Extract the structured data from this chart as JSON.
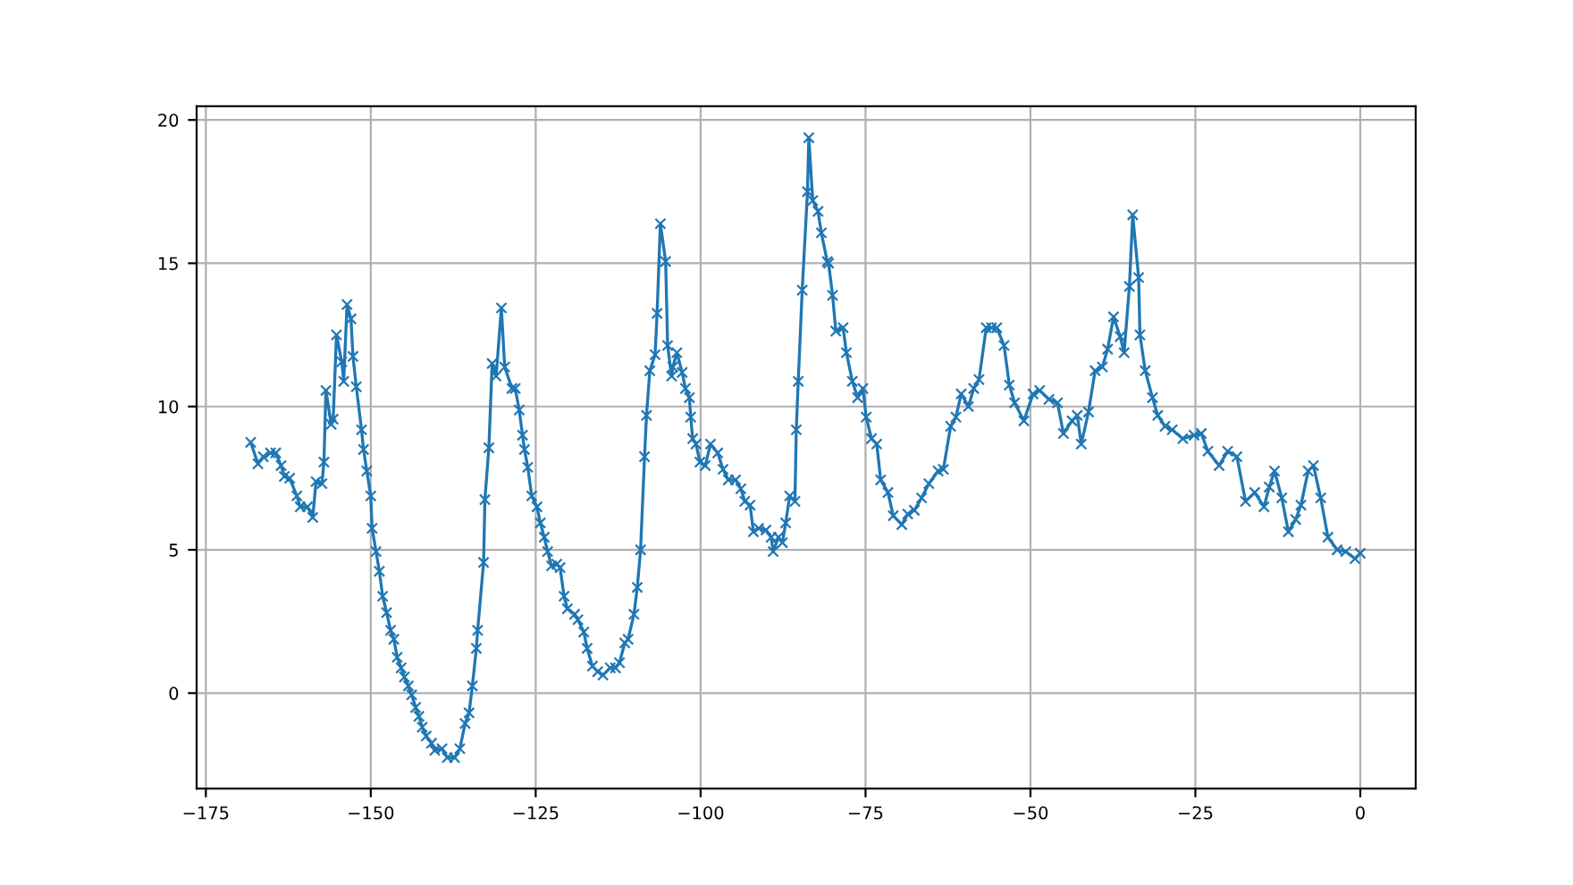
{
  "chart_data": {
    "type": "line",
    "marker": "cross",
    "line_style": "solid",
    "grid": true,
    "xlim": [
      -176.4,
      8.4
    ],
    "ylim": [
      -3.33,
      20.48
    ],
    "xticks": [
      {
        "value": -175,
        "label": "−175"
      },
      {
        "value": -150,
        "label": "−150"
      },
      {
        "value": -125,
        "label": "−125"
      },
      {
        "value": -100,
        "label": "−100"
      },
      {
        "value": -75,
        "label": "−75"
      },
      {
        "value": -50,
        "label": "−50"
      },
      {
        "value": -25,
        "label": "−25"
      },
      0
    ],
    "yticks": [
      0,
      5,
      10,
      15,
      20
    ],
    "series": [
      {
        "color": "#1f77b4",
        "x": [
          -168.2,
          -167.1,
          -166.3,
          -165.2,
          -164.4,
          -163.6,
          -163.1,
          -162.3,
          -161.2,
          -160.7,
          -159.6,
          -158.8,
          -158.3,
          -157.4,
          -157.1,
          -156.8,
          -156.0,
          -155.7,
          -155.2,
          -154.4,
          -154.1,
          -153.6,
          -153.0,
          -152.7,
          -152.2,
          -151.4,
          -151.1,
          -150.6,
          -150.0,
          -149.8,
          -149.2,
          -148.7,
          -148.2,
          -147.6,
          -147.0,
          -146.5,
          -146.0,
          -145.4,
          -144.9,
          -144.3,
          -143.8,
          -143.2,
          -142.7,
          -142.2,
          -141.6,
          -140.8,
          -140.3,
          -139.2,
          -138.4,
          -137.3,
          -136.5,
          -135.7,
          -135.1,
          -134.6,
          -134.0,
          -133.8,
          -132.9,
          -132.7,
          -132.1,
          -131.6,
          -131.0,
          -130.2,
          -129.7,
          -128.6,
          -128.1,
          -127.5,
          -127.0,
          -126.7,
          -126.2,
          -125.6,
          -124.8,
          -124.3,
          -123.7,
          -123.2,
          -122.6,
          -121.8,
          -121.3,
          -120.7,
          -120.2,
          -119.1,
          -118.6,
          -117.7,
          -117.2,
          -116.4,
          -115.6,
          -114.8,
          -113.7,
          -112.9,
          -112.3,
          -111.5,
          -111.0,
          -110.1,
          -109.6,
          -109.1,
          -108.5,
          -108.2,
          -107.7,
          -106.9,
          -106.6,
          -106.1,
          -105.3,
          -105.0,
          -104.4,
          -104.2,
          -103.6,
          -102.8,
          -102.3,
          -101.7,
          -101.5,
          -101.2,
          -100.7,
          -100.1,
          -99.3,
          -98.5,
          -97.4,
          -96.6,
          -95.8,
          -94.7,
          -93.9,
          -93.3,
          -92.5,
          -92.0,
          -91.2,
          -90.1,
          -89.3,
          -89.0,
          -88.2,
          -87.6,
          -87.1,
          -86.5,
          -85.7,
          -85.5,
          -85.2,
          -84.6,
          -83.8,
          -83.6,
          -83.0,
          -82.2,
          -81.7,
          -80.8,
          -80.6,
          -80.0,
          -79.5,
          -78.4,
          -77.9,
          -77.0,
          -76.2,
          -75.4,
          -74.9,
          -74.1,
          -73.3,
          -72.7,
          -71.6,
          -70.8,
          -69.5,
          -68.6,
          -67.6,
          -66.5,
          -65.4,
          -64.0,
          -63.2,
          -62.1,
          -61.3,
          -60.5,
          -59.4,
          -58.6,
          -57.8,
          -56.7,
          -55.9,
          -55.1,
          -54.0,
          -53.2,
          -52.4,
          -51.0,
          -49.6,
          -48.6,
          -47.2,
          -45.9,
          -45.0,
          -43.7,
          -42.9,
          -42.3,
          -41.2,
          -40.2,
          -39.1,
          -38.3,
          -37.4,
          -36.4,
          -35.8,
          -35.0,
          -34.5,
          -33.6,
          -33.4,
          -32.6,
          -31.5,
          -30.7,
          -29.6,
          -28.5,
          -26.9,
          -25.2,
          -24.1,
          -23.1,
          -21.4,
          -20.1,
          -18.7,
          -17.4,
          -16.0,
          -14.6,
          -13.8,
          -13.0,
          -11.9,
          -10.9,
          -9.8,
          -9.0,
          -7.9,
          -7.1,
          -6.0,
          -4.9,
          -3.5,
          -2.2,
          -0.8,
          0
        ],
        "values": [
          8.75,
          8.0,
          8.25,
          8.38,
          8.38,
          7.94,
          7.56,
          7.5,
          6.88,
          6.5,
          6.5,
          6.13,
          7.38,
          7.31,
          8.06,
          10.56,
          9.38,
          9.56,
          12.5,
          11.56,
          10.88,
          13.56,
          13.06,
          11.75,
          10.69,
          9.19,
          8.5,
          7.75,
          6.88,
          5.75,
          4.94,
          4.25,
          3.38,
          2.81,
          2.19,
          1.88,
          1.25,
          0.88,
          0.56,
          0.25,
          -0.06,
          -0.5,
          -0.81,
          -1.19,
          -1.5,
          -1.75,
          -2.0,
          -1.94,
          -2.25,
          -2.25,
          -1.94,
          -1.06,
          -0.69,
          0.25,
          1.56,
          2.19,
          4.56,
          6.75,
          8.56,
          11.5,
          11.06,
          13.44,
          11.38,
          10.63,
          10.63,
          9.88,
          9.0,
          8.5,
          7.88,
          6.88,
          6.5,
          5.94,
          5.44,
          4.94,
          4.44,
          4.5,
          4.38,
          3.38,
          2.94,
          2.75,
          2.56,
          2.13,
          1.56,
          0.94,
          0.75,
          0.63,
          0.88,
          0.88,
          1.06,
          1.75,
          1.88,
          2.75,
          3.69,
          5.0,
          8.25,
          9.69,
          11.25,
          11.81,
          13.25,
          16.38,
          15.06,
          12.13,
          11.06,
          11.38,
          11.88,
          11.19,
          10.63,
          10.31,
          9.63,
          8.88,
          8.69,
          8.06,
          7.94,
          8.69,
          8.38,
          7.81,
          7.44,
          7.44,
          7.13,
          6.69,
          6.56,
          5.63,
          5.75,
          5.69,
          5.44,
          4.94,
          5.44,
          5.25,
          5.94,
          6.88,
          6.69,
          9.19,
          10.88,
          14.06,
          17.5,
          19.38,
          17.19,
          16.81,
          16.06,
          15.06,
          15.0,
          13.88,
          12.63,
          12.75,
          11.88,
          10.88,
          10.31,
          10.63,
          9.63,
          8.88,
          8.69,
          7.44,
          7.0,
          6.19,
          5.88,
          6.25,
          6.38,
          6.81,
          7.31,
          7.75,
          7.81,
          9.31,
          9.63,
          10.44,
          10.0,
          10.63,
          10.94,
          12.75,
          12.75,
          12.75,
          12.13,
          10.75,
          10.13,
          9.5,
          10.44,
          10.56,
          10.25,
          10.13,
          9.06,
          9.5,
          9.69,
          8.69,
          9.81,
          11.25,
          11.38,
          12.0,
          13.13,
          12.44,
          11.88,
          14.19,
          16.69,
          14.5,
          12.5,
          11.25,
          10.31,
          9.69,
          9.31,
          9.19,
          8.88,
          9.0,
          9.06,
          8.44,
          7.94,
          8.44,
          8.25,
          6.69,
          7.0,
          6.5,
          7.19,
          7.75,
          6.81,
          5.63,
          6.06,
          6.56,
          7.75,
          7.94,
          6.81,
          5.44,
          5.0,
          4.94,
          4.69,
          4.88
        ]
      }
    ]
  }
}
